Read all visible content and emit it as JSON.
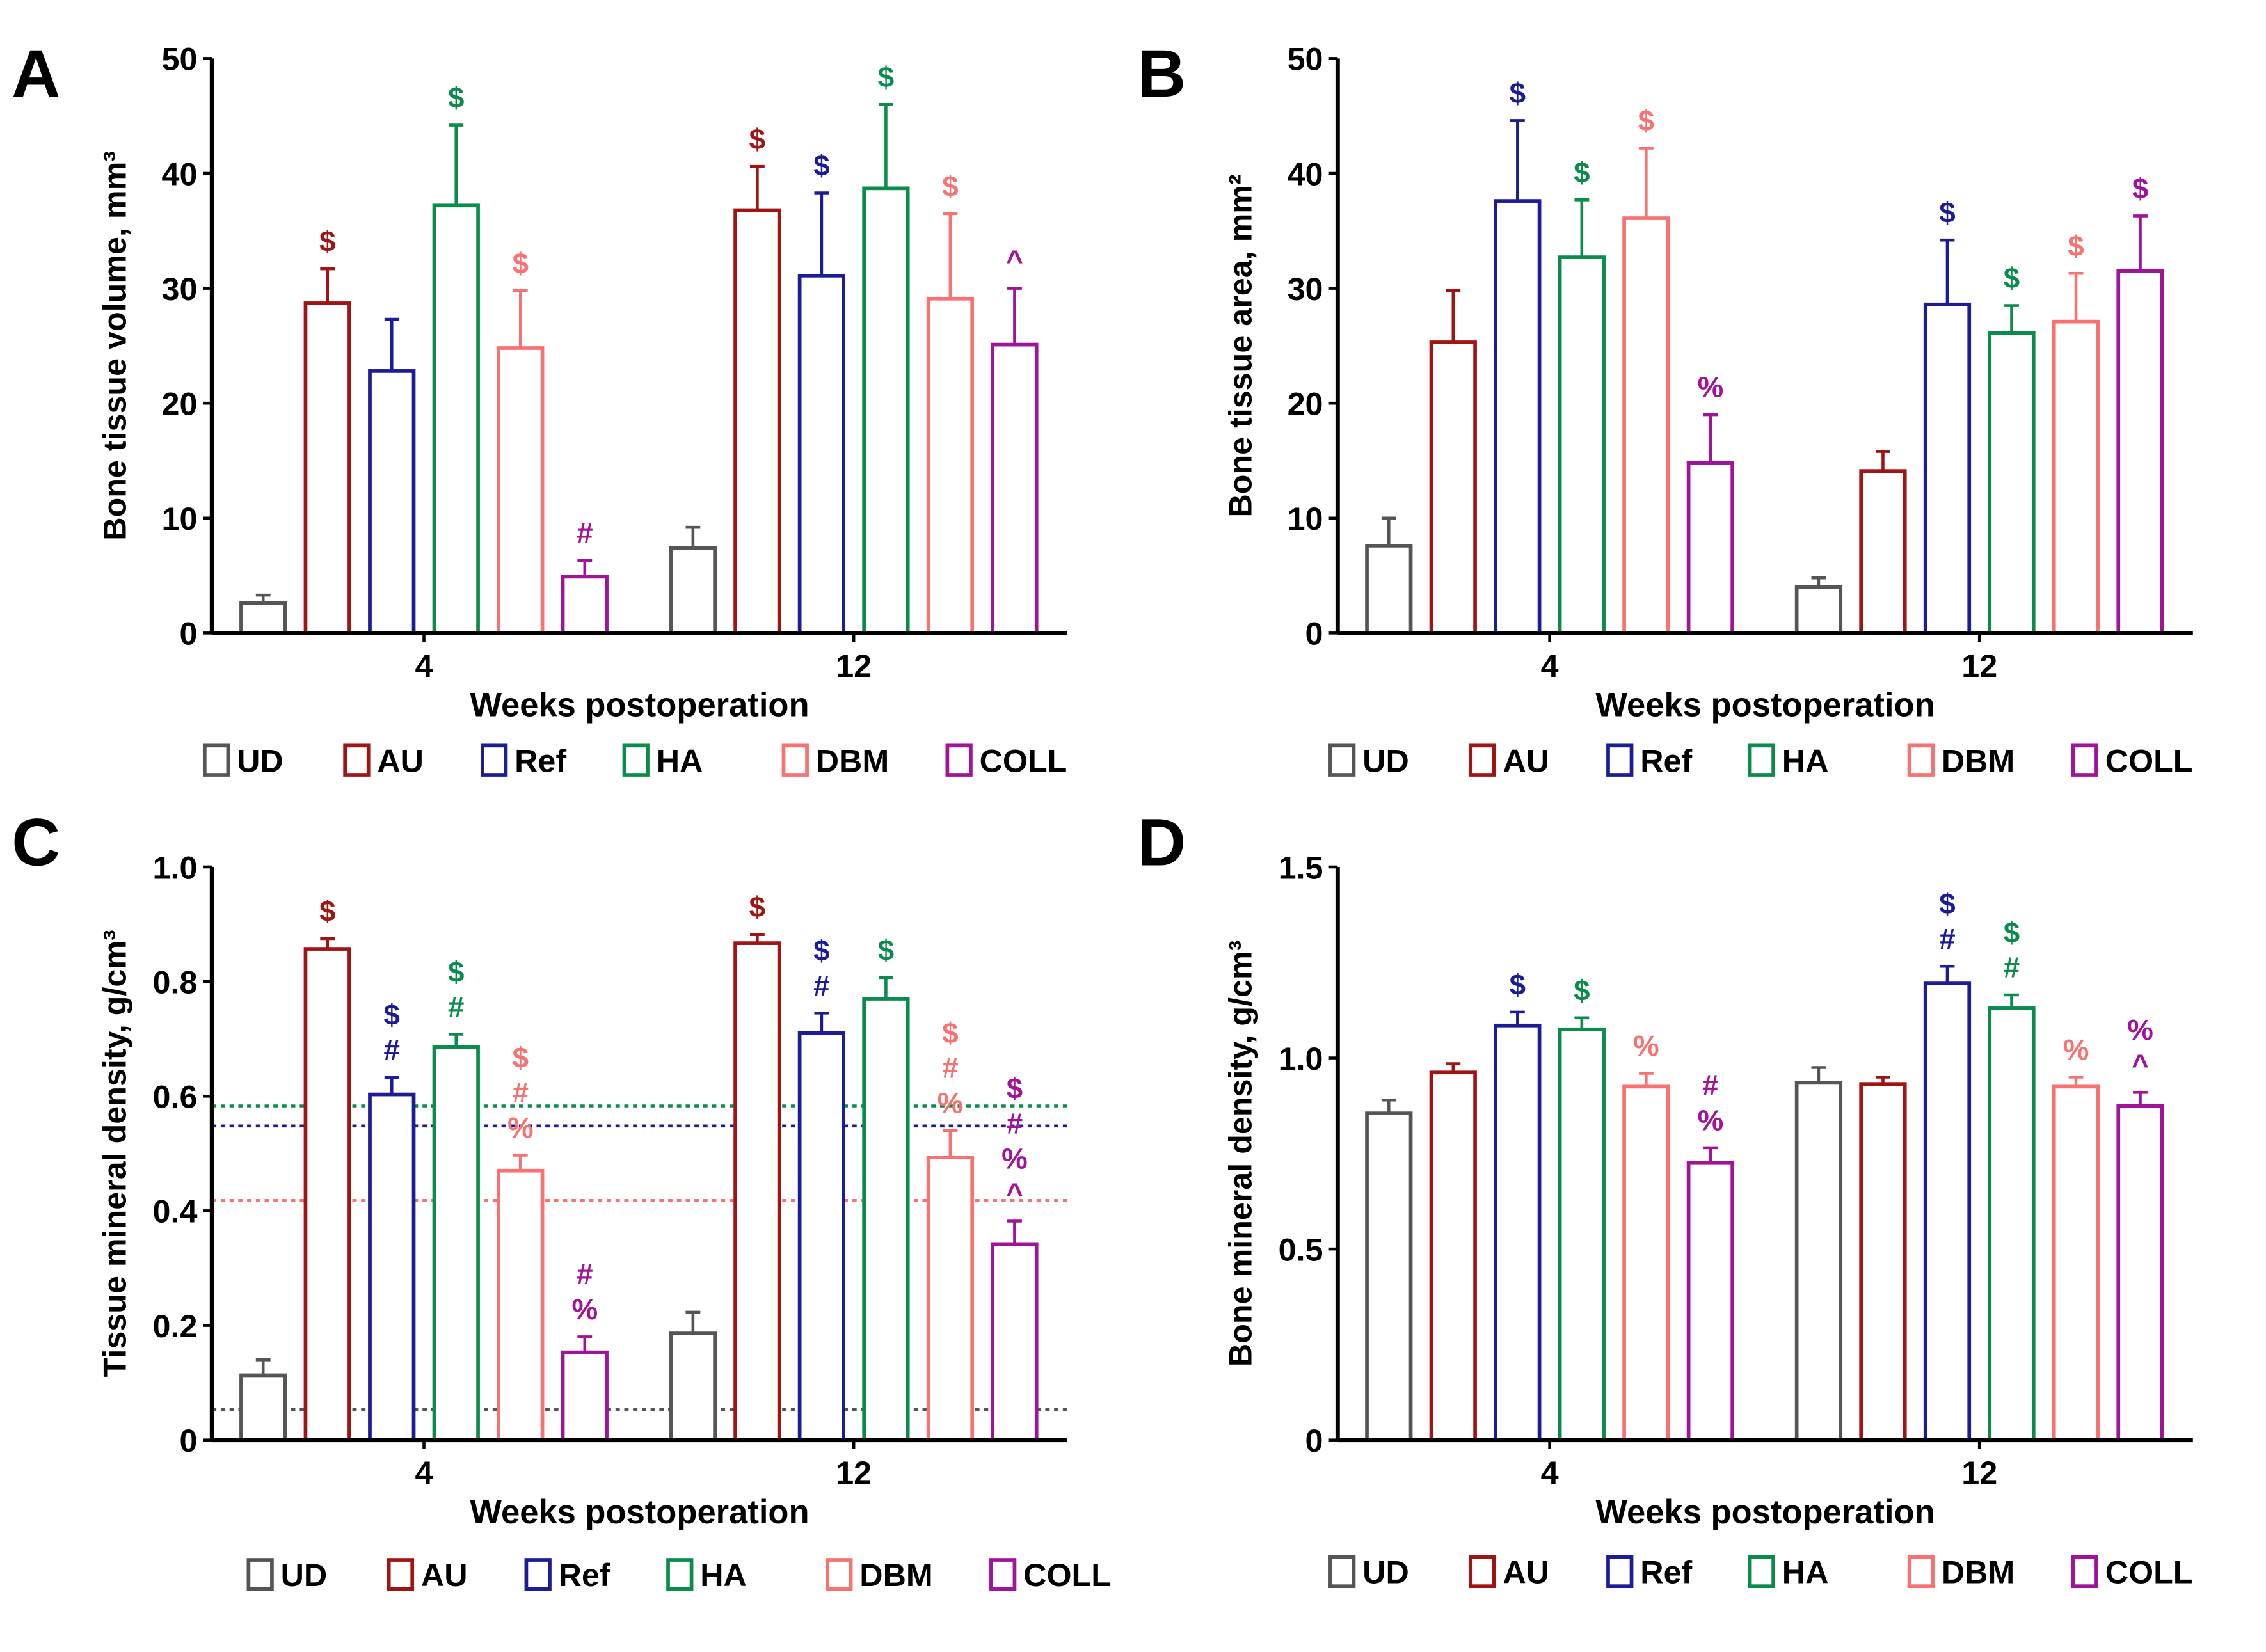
{
  "colors": {
    "UD": "#555555",
    "AU": "#a01414",
    "Ref": "#1c1c96",
    "HA": "#0b8c4c",
    "DBM": "#f87272",
    "COLL": "#a0149a"
  },
  "chart_data": [
    {
      "panel": "A",
      "type": "bar",
      "ylabel": "Bone tissue volume, mm³",
      "xlabel": "Weeks postoperation",
      "ylim": [
        0,
        50
      ],
      "yticks": [
        "0",
        "10",
        "20",
        "30",
        "40",
        "50"
      ],
      "ytick_values": [
        0,
        10,
        20,
        30,
        40,
        50
      ],
      "categories": [
        "4",
        "12"
      ],
      "legend": [
        "UD",
        "AU",
        "Ref",
        "HA",
        "DBM",
        "COLL"
      ],
      "legend_position": "bottom",
      "series": [
        {
          "name": "UD",
          "values": [
            2.6,
            7.4
          ],
          "error_top": [
            3.3,
            9.2
          ],
          "annotations": [
            "",
            ""
          ]
        },
        {
          "name": "AU",
          "values": [
            28.7,
            36.8
          ],
          "error_top": [
            31.7,
            40.6
          ],
          "annotations": [
            "$",
            "$"
          ]
        },
        {
          "name": "Ref",
          "values": [
            22.8,
            31.1
          ],
          "error_top": [
            27.3,
            38.3
          ],
          "annotations": [
            "",
            "$"
          ]
        },
        {
          "name": "HA",
          "values": [
            37.2,
            38.7
          ],
          "error_top": [
            44.2,
            46.0
          ],
          "annotations": [
            "$",
            "$"
          ]
        },
        {
          "name": "DBM",
          "values": [
            24.8,
            29.1
          ],
          "error_top": [
            29.8,
            36.5
          ],
          "annotations": [
            "$",
            "$"
          ]
        },
        {
          "name": "COLL",
          "values": [
            4.9,
            25.1
          ],
          "error_top": [
            6.3,
            30.0
          ],
          "annotations": [
            "#",
            "^"
          ]
        }
      ],
      "reference_lines": []
    },
    {
      "panel": "B",
      "type": "bar",
      "ylabel": "Bone tissue area, mm²",
      "xlabel": "Weeks postoperation",
      "ylim": [
        0,
        50
      ],
      "yticks": [
        "0",
        "10",
        "20",
        "30",
        "40",
        "50"
      ],
      "ytick_values": [
        0,
        10,
        20,
        30,
        40,
        50
      ],
      "categories": [
        "4",
        "12"
      ],
      "legend": [
        "UD",
        "AU",
        "Ref",
        "HA",
        "DBM",
        "COLL"
      ],
      "legend_position": "bottom",
      "series": [
        {
          "name": "UD",
          "values": [
            7.6,
            4.0
          ],
          "error_top": [
            10.0,
            4.8
          ],
          "annotations": [
            "",
            ""
          ]
        },
        {
          "name": "AU",
          "values": [
            25.3,
            14.1
          ],
          "error_top": [
            29.8,
            15.8
          ],
          "annotations": [
            "",
            ""
          ]
        },
        {
          "name": "Ref",
          "values": [
            37.6,
            28.6
          ],
          "error_top": [
            44.6,
            34.2
          ],
          "annotations": [
            "$",
            "$"
          ]
        },
        {
          "name": "HA",
          "values": [
            32.7,
            26.1
          ],
          "error_top": [
            37.7,
            28.5
          ],
          "annotations": [
            "$",
            "$"
          ]
        },
        {
          "name": "DBM",
          "values": [
            36.1,
            27.1
          ],
          "error_top": [
            42.2,
            31.3
          ],
          "annotations": [
            "$",
            "$"
          ]
        },
        {
          "name": "COLL",
          "values": [
            14.8,
            31.5
          ],
          "error_top": [
            19.0,
            36.3
          ],
          "annotations": [
            "%",
            "$"
          ]
        }
      ],
      "reference_lines": []
    },
    {
      "panel": "C",
      "type": "bar",
      "ylabel": "Tissue mineral density, g/cm³",
      "xlabel": "Weeks postoperation",
      "ylim": [
        0,
        1.0
      ],
      "yticks": [
        "0",
        "0.2",
        "0.4",
        "0.6",
        "0.8",
        "1.0"
      ],
      "ytick_values": [
        0,
        0.2,
        0.4,
        0.6,
        0.8,
        1.0
      ],
      "categories": [
        "4",
        "12"
      ],
      "legend": [
        "UD",
        "AU",
        "Ref",
        "HA",
        "DBM",
        "COLL"
      ],
      "legend_position": "bottom",
      "series": [
        {
          "name": "UD",
          "values": [
            0.113,
            0.186
          ],
          "error_top": [
            0.14,
            0.223
          ],
          "annotations": [
            "",
            ""
          ]
        },
        {
          "name": "AU",
          "values": [
            0.857,
            0.867
          ],
          "error_top": [
            0.875,
            0.882
          ],
          "annotations": [
            "$",
            "$"
          ]
        },
        {
          "name": "Ref",
          "values": [
            0.603,
            0.71
          ],
          "error_top": [
            0.633,
            0.745
          ],
          "annotations": [
            "$\n#",
            "$\n#"
          ]
        },
        {
          "name": "HA",
          "values": [
            0.686,
            0.77
          ],
          "error_top": [
            0.708,
            0.807
          ],
          "annotations": [
            "$\n#",
            "$"
          ]
        },
        {
          "name": "DBM",
          "values": [
            0.47,
            0.493
          ],
          "error_top": [
            0.497,
            0.54
          ],
          "annotations": [
            "$\n#\n%",
            "$\n#\n%"
          ]
        },
        {
          "name": "COLL",
          "values": [
            0.153,
            0.342
          ],
          "error_top": [
            0.18,
            0.382
          ],
          "annotations": [
            "#\n%",
            "$\n#\n%\n^"
          ]
        }
      ],
      "reference_lines": [
        {
          "series": "HA",
          "value": 0.583
        },
        {
          "series": "Ref",
          "value": 0.548
        },
        {
          "series": "DBM",
          "value": 0.418
        },
        {
          "series": "UD",
          "value": 0.053
        }
      ]
    },
    {
      "panel": "D",
      "type": "bar",
      "ylabel": "Bone mineral density, g/cm³",
      "xlabel": "Weeks postoperation",
      "ylim": [
        0,
        1.5
      ],
      "yticks": [
        "0",
        "0.5",
        "1.0",
        "1.5"
      ],
      "ytick_values": [
        0,
        0.5,
        1.0,
        1.5
      ],
      "categories": [
        "4",
        "12"
      ],
      "legend": [
        "UD",
        "AU",
        "Ref",
        "HA",
        "DBM",
        "COLL"
      ],
      "legend_position": "bottom",
      "series": [
        {
          "name": "UD",
          "values": [
            0.855,
            0.935
          ],
          "error_top": [
            0.89,
            0.975
          ],
          "annotations": [
            "",
            ""
          ]
        },
        {
          "name": "AU",
          "values": [
            0.962,
            0.932
          ],
          "error_top": [
            0.985,
            0.95
          ],
          "annotations": [
            "",
            ""
          ]
        },
        {
          "name": "Ref",
          "values": [
            1.085,
            1.195
          ],
          "error_top": [
            1.12,
            1.24
          ],
          "annotations": [
            "$",
            "$\n#"
          ]
        },
        {
          "name": "HA",
          "values": [
            1.075,
            1.13
          ],
          "error_top": [
            1.105,
            1.165
          ],
          "annotations": [
            "$",
            "$\n#"
          ]
        },
        {
          "name": "DBM",
          "values": [
            0.925,
            0.925
          ],
          "error_top": [
            0.96,
            0.95
          ],
          "annotations": [
            "%",
            "%"
          ]
        },
        {
          "name": "COLL",
          "values": [
            0.725,
            0.875
          ],
          "error_top": [
            0.765,
            0.91
          ],
          "annotations": [
            "#\n%",
            "%\n^"
          ]
        }
      ],
      "reference_lines": []
    }
  ]
}
